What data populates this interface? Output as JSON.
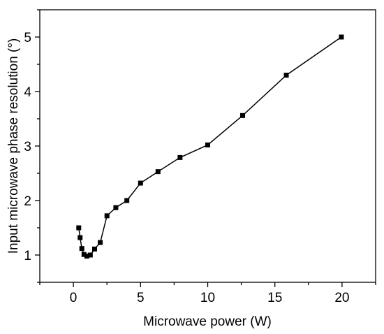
{
  "chart_data": {
    "type": "line",
    "xlabel": "Microwave power (W)",
    "ylabel": "Input microwave phase resolution (°)",
    "xlim": [
      -2.5,
      22.5
    ],
    "ylim": [
      0.5,
      5.5
    ],
    "x_ticks": [
      0,
      5,
      10,
      15,
      20
    ],
    "y_ticks": [
      1,
      2,
      3,
      4,
      5
    ],
    "x_tick_labels": [
      "0",
      "5",
      "10",
      "15",
      "20"
    ],
    "y_tick_labels": [
      "1",
      "2",
      "3",
      "4",
      "5"
    ],
    "grid": false,
    "legend": "none",
    "marker": "square",
    "color": "#000000",
    "series": [
      {
        "x": [
          0.4,
          0.5,
          0.63,
          0.79,
          1.0,
          1.26,
          1.58,
          2.0,
          2.5,
          3.16,
          3.98,
          5.0,
          6.3,
          7.94,
          10.0,
          12.6,
          15.85,
          19.95
        ],
        "y": [
          1.5,
          1.32,
          1.12,
          1.01,
          0.98,
          1.0,
          1.11,
          1.23,
          1.72,
          1.87,
          2.0,
          2.32,
          2.53,
          2.79,
          3.02,
          3.56,
          4.3,
          5.0
        ]
      }
    ]
  }
}
